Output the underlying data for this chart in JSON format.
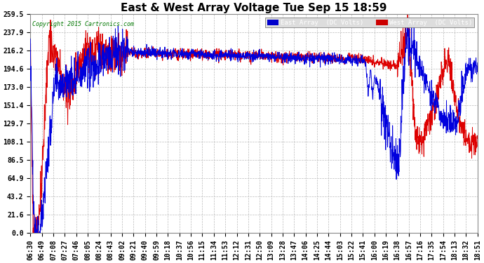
{
  "title": "East & West Array Voltage Tue Sep 15 18:59",
  "copyright": "Copyright 2015 Cartronics.com",
  "legend_labels": [
    "East Array  (DC Volts)",
    "West Array  (DC Volts)"
  ],
  "legend_bg_colors": [
    "#0000cc",
    "#cc0000"
  ],
  "line_colors": [
    "#0000dd",
    "#dd0000"
  ],
  "ymin": 0.0,
  "ymax": 259.5,
  "yticks": [
    0.0,
    21.6,
    43.2,
    64.9,
    86.5,
    108.1,
    129.7,
    151.4,
    173.0,
    194.6,
    216.2,
    237.9,
    259.5
  ],
  "background_color": "#ffffff",
  "plot_bg_color": "#ffffff",
  "grid_color": "#bbbbbb",
  "title_fontsize": 11,
  "tick_fontsize": 7,
  "xtick_labels": [
    "06:30",
    "06:49",
    "07:08",
    "07:27",
    "07:46",
    "08:05",
    "08:24",
    "08:43",
    "09:02",
    "09:21",
    "09:40",
    "09:59",
    "10:18",
    "10:37",
    "10:56",
    "11:15",
    "11:34",
    "11:53",
    "12:12",
    "12:31",
    "12:50",
    "13:09",
    "13:28",
    "13:47",
    "14:06",
    "14:25",
    "14:44",
    "15:03",
    "15:22",
    "15:41",
    "16:00",
    "16:19",
    "16:38",
    "16:57",
    "17:16",
    "17:35",
    "17:54",
    "18:13",
    "18:32",
    "18:51"
  ]
}
